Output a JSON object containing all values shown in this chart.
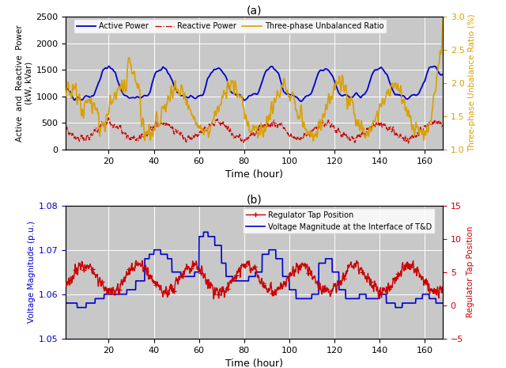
{
  "title_a": "(a)",
  "title_b": "(b)",
  "xlabel": "Time (hour)",
  "ylabel_a": "Active  and  Reactive  Power\n(kW, kVar)",
  "ylabel_a2": "Three-phase Unbalance Ratio (%)",
  "ylabel_b": "Voltage Magnitude (p.u.)",
  "ylabel_b2": "Regulator Tap Position",
  "xlim": [
    1,
    168
  ],
  "ylim_a": [
    0,
    2500
  ],
  "ylim_a2": [
    1.0,
    3.0
  ],
  "ylim_b": [
    1.05,
    1.08
  ],
  "ylim_b2": [
    -5,
    15
  ],
  "xticks": [
    20,
    40,
    60,
    80,
    100,
    120,
    140,
    160
  ],
  "yticks_a": [
    0,
    500,
    1000,
    1500,
    2000,
    2500
  ],
  "yticks_a2": [
    1.0,
    1.5,
    2.0,
    2.5,
    3.0
  ],
  "yticks_b": [
    1.05,
    1.06,
    1.07,
    1.08
  ],
  "yticks_b2": [
    -5,
    0,
    5,
    10,
    15
  ],
  "color_active": "#0000CC",
  "color_reactive": "#CC0000",
  "color_unbalance": "#DAA000",
  "color_regulator": "#CC0000",
  "color_voltage": "#0000CC",
  "bg_color": "#C8C8C8",
  "fig_color": "#FFFFFF"
}
